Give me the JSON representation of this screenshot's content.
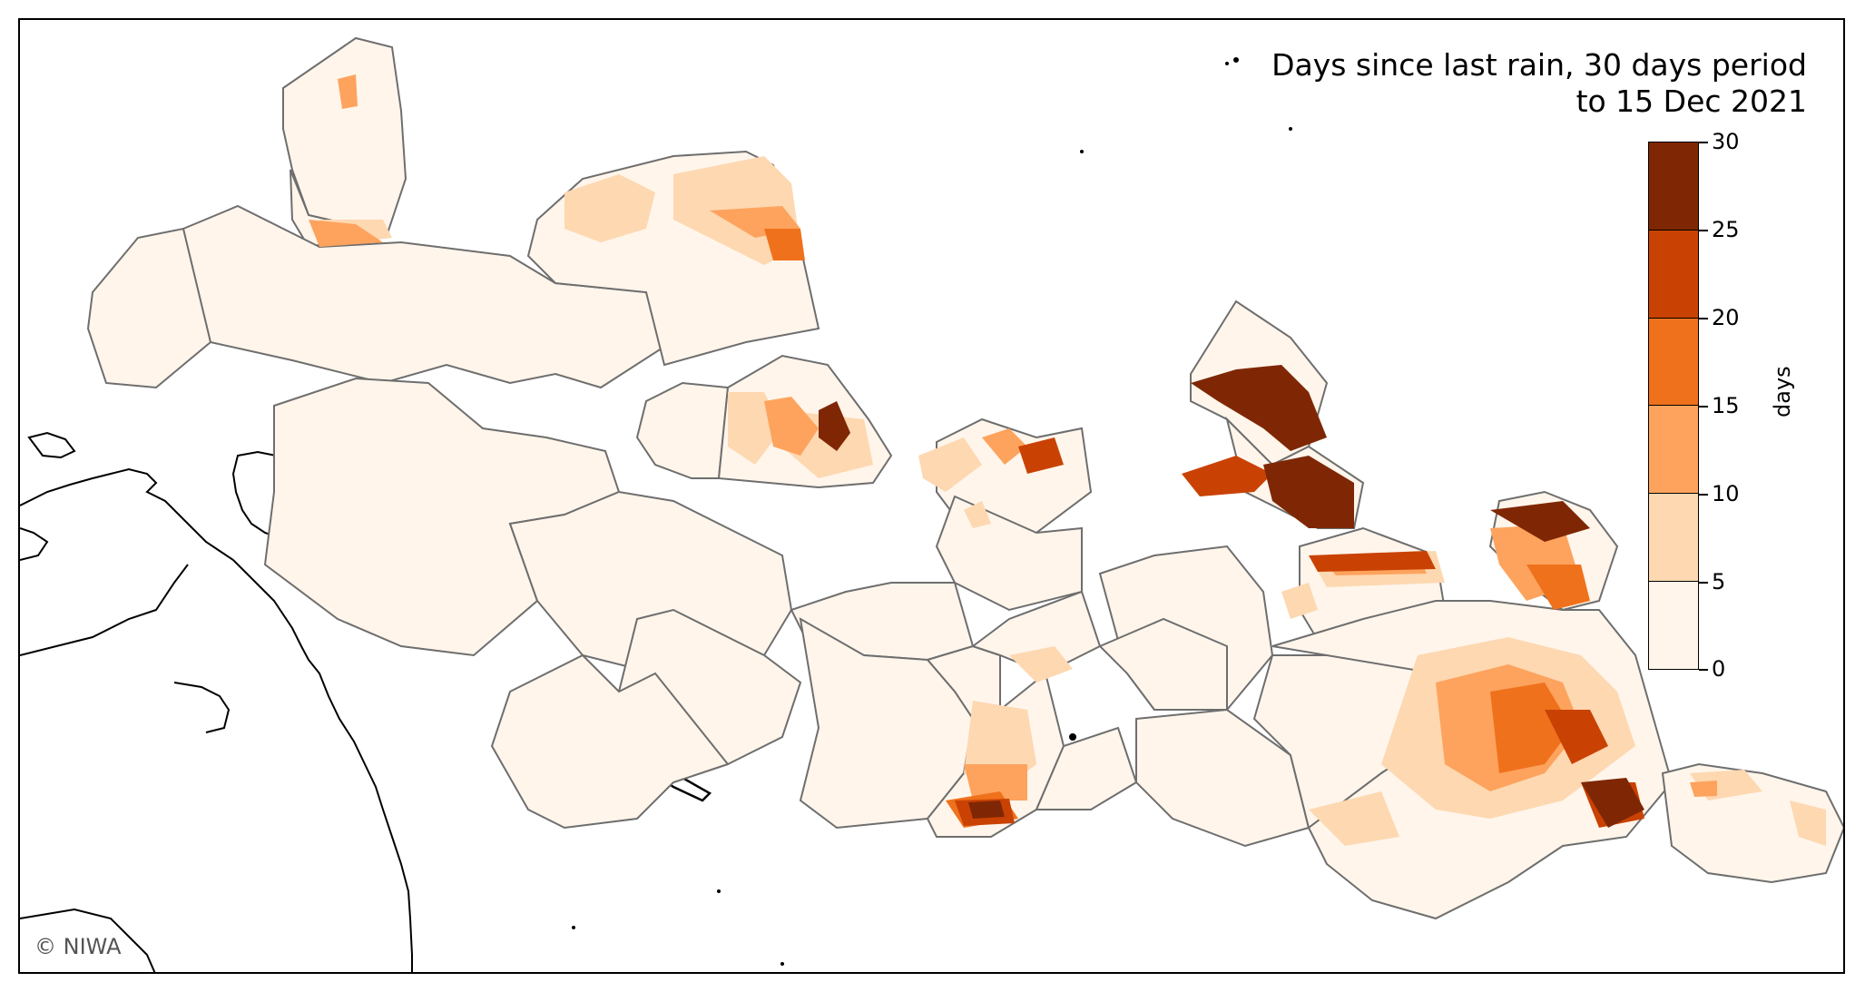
{
  "title": {
    "line1": "Days since last rain, 30 days period",
    "line2": "to 15 Dec 2021"
  },
  "credit": "© NIWA",
  "colorbar": {
    "unit_label": "days",
    "ticks": [
      "0",
      "5",
      "10",
      "15",
      "20",
      "25",
      "30"
    ],
    "bins": [
      {
        "min": 0,
        "max": 5,
        "color": "#fff5eb"
      },
      {
        "min": 5,
        "max": 10,
        "color": "#fdd8b1"
      },
      {
        "min": 10,
        "max": 15,
        "color": "#fda35e"
      },
      {
        "min": 15,
        "max": 20,
        "color": "#f0711c"
      },
      {
        "min": 20,
        "max": 25,
        "color": "#c94204"
      },
      {
        "min": 25,
        "max": 30,
        "color": "#7f2704"
      }
    ]
  },
  "colors": {
    "region_fill": "#fff5eb",
    "region_stroke": "#6e6e6e",
    "coastline": "#000000"
  }
}
